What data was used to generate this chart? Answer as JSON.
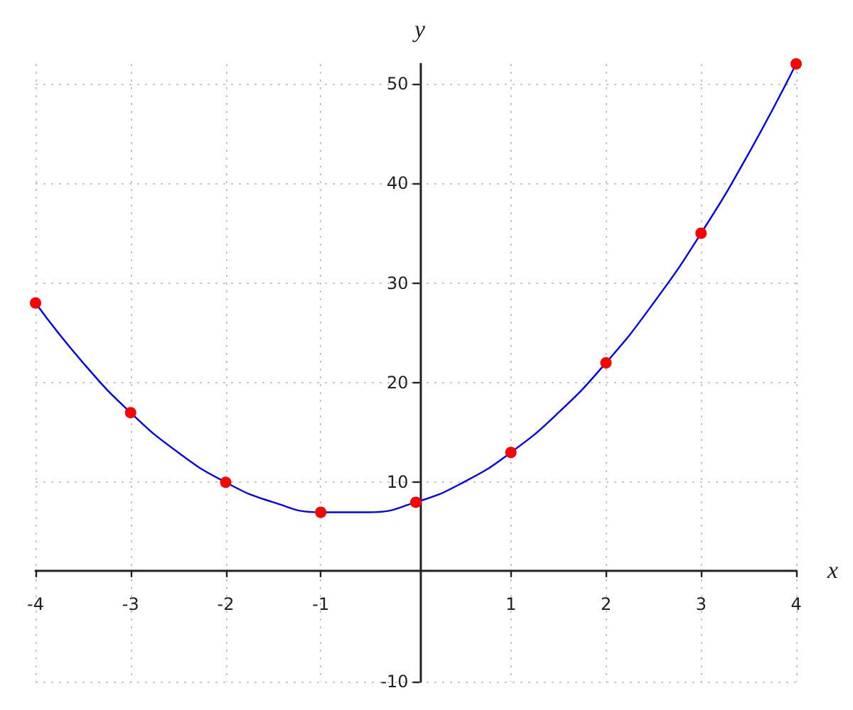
{
  "chart_data": {
    "type": "scatter",
    "xlabel": "x",
    "ylabel": "y",
    "xlim": [
      -4,
      4
    ],
    "xticks": [
      -4,
      -3,
      -2,
      -1,
      1,
      2,
      3,
      4
    ],
    "ylim": [
      -10,
      52
    ],
    "yticks": [
      -10,
      10,
      20,
      30,
      40,
      50
    ],
    "grid": true,
    "series": [
      {
        "type": "line",
        "color": "#0000ff",
        "marker": "none",
        "x": [
          -4,
          -3.5,
          -3,
          -2.5,
          -2,
          -1.5,
          -1,
          -0.5,
          0,
          0.5,
          1,
          1.5,
          2,
          2.5,
          3,
          3.5,
          4
        ],
        "values": [
          28,
          22,
          17,
          13,
          10,
          8,
          7,
          7,
          8,
          10,
          13,
          17,
          22,
          28,
          35,
          43,
          52
        ]
      },
      {
        "color": "#ff0000",
        "marker": "circle",
        "x": [
          -4,
          -3,
          -2,
          -1,
          0,
          1,
          2,
          3,
          4
        ],
        "values": [
          28,
          17,
          10,
          7,
          8,
          13,
          22,
          35,
          52
        ]
      }
    ]
  }
}
